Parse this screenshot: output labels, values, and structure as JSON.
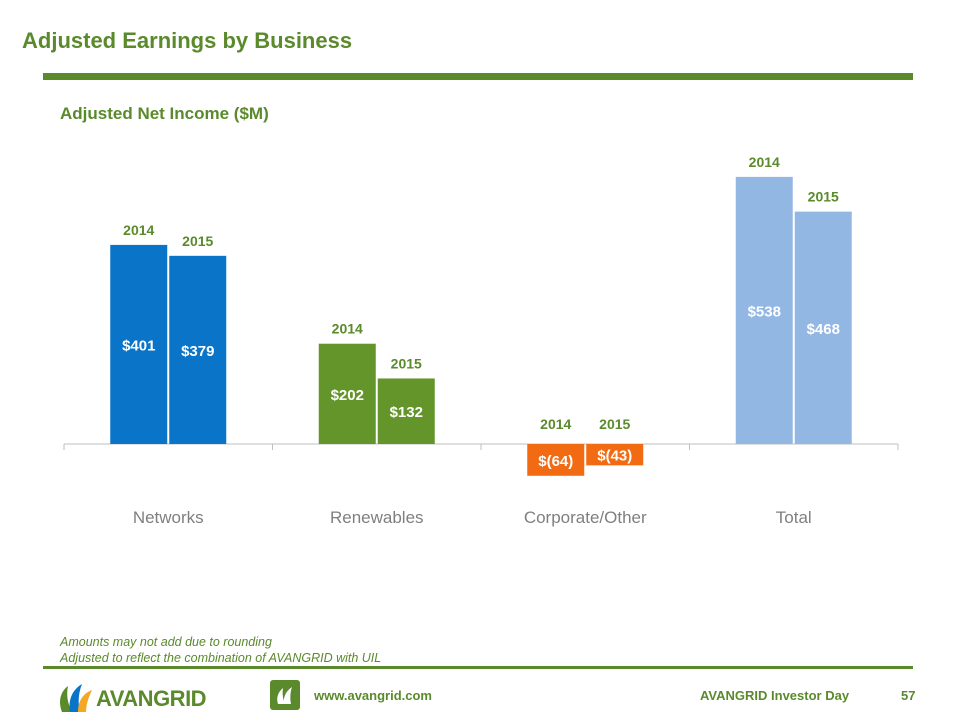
{
  "page": {
    "title": "Adjusted Earnings by Business",
    "subtitle": "Adjusted Net Income ($M)",
    "notes": [
      "Amounts may not add due to rounding",
      "Adjusted to reflect the combination of AVANGRID with UIL"
    ],
    "logo_text": "AVANGRID",
    "url": "www.avangrid.com",
    "footer_right": "AVANGRID Investor Day",
    "page_number": "57"
  },
  "chart_data": {
    "type": "bar",
    "title": "Adjusted Net Income ($M)",
    "categories": [
      "Networks",
      "Renewables",
      "Corporate/Other",
      "Total"
    ],
    "series": [
      {
        "name": "2014",
        "values": [
          401,
          202,
          -64,
          538
        ]
      },
      {
        "name": "2015",
        "values": [
          379,
          132,
          -43,
          468
        ]
      }
    ],
    "data_labels": [
      [
        "$401",
        "$379"
      ],
      [
        "$202",
        "$132"
      ],
      [
        "$(64)",
        "$(43)"
      ],
      [
        "$538",
        "$468"
      ]
    ],
    "group_colors": [
      "#0a74c8",
      "#64952a",
      "#f26b12",
      "#93b7e3"
    ],
    "ylim": [
      -70,
      560
    ],
    "legend": "none"
  }
}
